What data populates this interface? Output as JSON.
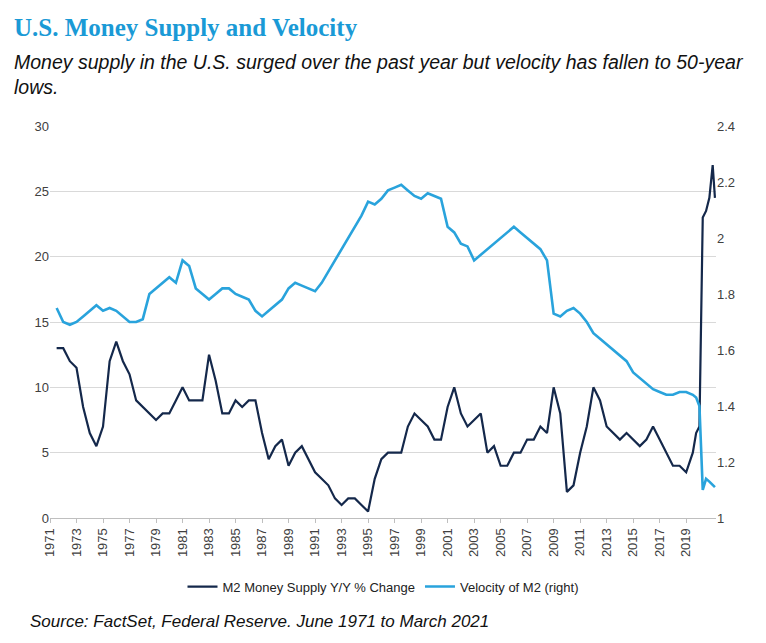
{
  "chart_data": {
    "type": "line",
    "title": "U.S. Money Supply and Velocity",
    "subtitle": "Money supply in the U.S. surged over the past year but velocity has fallen to 50-year lows.",
    "annotations": [
      "Source: FactSet, Federal Reserve. June 1971 to March 2021"
    ],
    "x": [
      1971.5,
      1972,
      1972.5,
      1973,
      1973.5,
      1974,
      1974.5,
      1975,
      1975.5,
      1976,
      1976.5,
      1977,
      1977.5,
      1978,
      1978.5,
      1979,
      1979.5,
      1980,
      1980.5,
      1981,
      1981.5,
      1982,
      1982.5,
      1983,
      1983.5,
      1984,
      1984.5,
      1985,
      1985.5,
      1986,
      1986.5,
      1987,
      1987.5,
      1988,
      1988.5,
      1989,
      1989.5,
      1990,
      1990.5,
      1991,
      1991.5,
      1992,
      1992.5,
      1993,
      1993.5,
      1994,
      1994.5,
      1995,
      1995.5,
      1996,
      1996.5,
      1997,
      1997.5,
      1998,
      1998.5,
      1999,
      1999.5,
      2000,
      2000.5,
      2001,
      2001.5,
      2002,
      2002.5,
      2003,
      2003.5,
      2004,
      2004.5,
      2005,
      2005.5,
      2006,
      2006.5,
      2007,
      2007.5,
      2008,
      2008.5,
      2009,
      2009.5,
      2010,
      2010.5,
      2011,
      2011.5,
      2012,
      2012.5,
      2013,
      2013.5,
      2014,
      2014.5,
      2015,
      2015.5,
      2016,
      2016.5,
      2017,
      2017.5,
      2018,
      2018.5,
      2019,
      2019.5,
      2019.75,
      2020,
      2020.25,
      2020.5,
      2020.75,
      2021,
      2021.17
    ],
    "xlim": [
      1971,
      2021.25
    ],
    "xticks": [
      1971,
      1973,
      1975,
      1977,
      1979,
      1981,
      1983,
      1985,
      1987,
      1989,
      1991,
      1993,
      1995,
      1997,
      1999,
      2001,
      2003,
      2005,
      2007,
      2009,
      2011,
      2013,
      2015,
      2017,
      2019
    ],
    "ylim": [
      0,
      30
    ],
    "yticks": [
      0,
      5,
      10,
      15,
      20,
      25,
      30
    ],
    "y2lim": [
      1,
      2.4
    ],
    "y2ticks": [
      1,
      1.2,
      1.4,
      1.6,
      1.8,
      2,
      2.2,
      2.4
    ],
    "grid": true,
    "legend": "bottom",
    "series": [
      {
        "name": "M2 Money Supply Y/Y % Change",
        "color": "#14284b",
        "values": [
          13,
          13,
          12,
          11.5,
          8.5,
          6.5,
          5.5,
          7,
          12,
          13.5,
          12,
          11,
          9,
          8.5,
          8,
          7.5,
          8,
          8,
          9,
          10,
          9,
          9,
          9,
          12.5,
          10.5,
          8,
          8,
          9,
          8.5,
          9,
          9,
          6.5,
          4.5,
          5.5,
          6,
          4,
          5,
          5.5,
          4.5,
          3.5,
          3,
          2.5,
          1.5,
          1,
          1.5,
          1.5,
          1,
          0.5,
          3,
          4.5,
          5,
          5,
          5,
          7,
          8,
          7.5,
          7,
          6,
          6,
          8.5,
          10,
          8,
          7,
          7.5,
          8,
          5,
          5.5,
          4,
          4,
          5,
          5,
          6,
          6,
          7,
          6.5,
          10,
          8,
          2,
          2.5,
          5,
          7,
          10,
          9,
          7,
          6.5,
          6,
          6.5,
          6,
          5.5,
          6,
          7,
          6,
          5,
          4,
          4,
          3.5,
          5,
          6.5,
          7,
          23,
          23.5,
          24.5,
          27,
          24.5
        ]
      },
      {
        "name": "Velocity of M2 (right)",
        "color": "#29a3dc",
        "axis": "y2",
        "values": [
          1.75,
          1.7,
          1.69,
          1.7,
          1.72,
          1.74,
          1.76,
          1.74,
          1.75,
          1.74,
          1.72,
          1.7,
          1.7,
          1.71,
          1.8,
          1.82,
          1.84,
          1.86,
          1.84,
          1.92,
          1.9,
          1.82,
          1.8,
          1.78,
          1.8,
          1.82,
          1.82,
          1.8,
          1.79,
          1.78,
          1.74,
          1.72,
          1.74,
          1.76,
          1.78,
          1.82,
          1.84,
          1.83,
          1.82,
          1.81,
          1.84,
          1.88,
          1.92,
          1.96,
          2.0,
          2.04,
          2.08,
          2.13,
          2.12,
          2.14,
          2.17,
          2.18,
          2.19,
          2.17,
          2.15,
          2.14,
          2.16,
          2.15,
          2.14,
          2.04,
          2.02,
          1.98,
          1.97,
          1.92,
          1.94,
          1.96,
          1.98,
          2.0,
          2.02,
          2.04,
          2.02,
          2.0,
          1.98,
          1.96,
          1.92,
          1.73,
          1.72,
          1.74,
          1.75,
          1.73,
          1.7,
          1.66,
          1.64,
          1.62,
          1.6,
          1.58,
          1.56,
          1.52,
          1.5,
          1.48,
          1.46,
          1.45,
          1.44,
          1.44,
          1.45,
          1.45,
          1.44,
          1.43,
          1.4,
          1.1,
          1.14,
          1.13,
          1.12,
          1.11
        ]
      }
    ]
  }
}
